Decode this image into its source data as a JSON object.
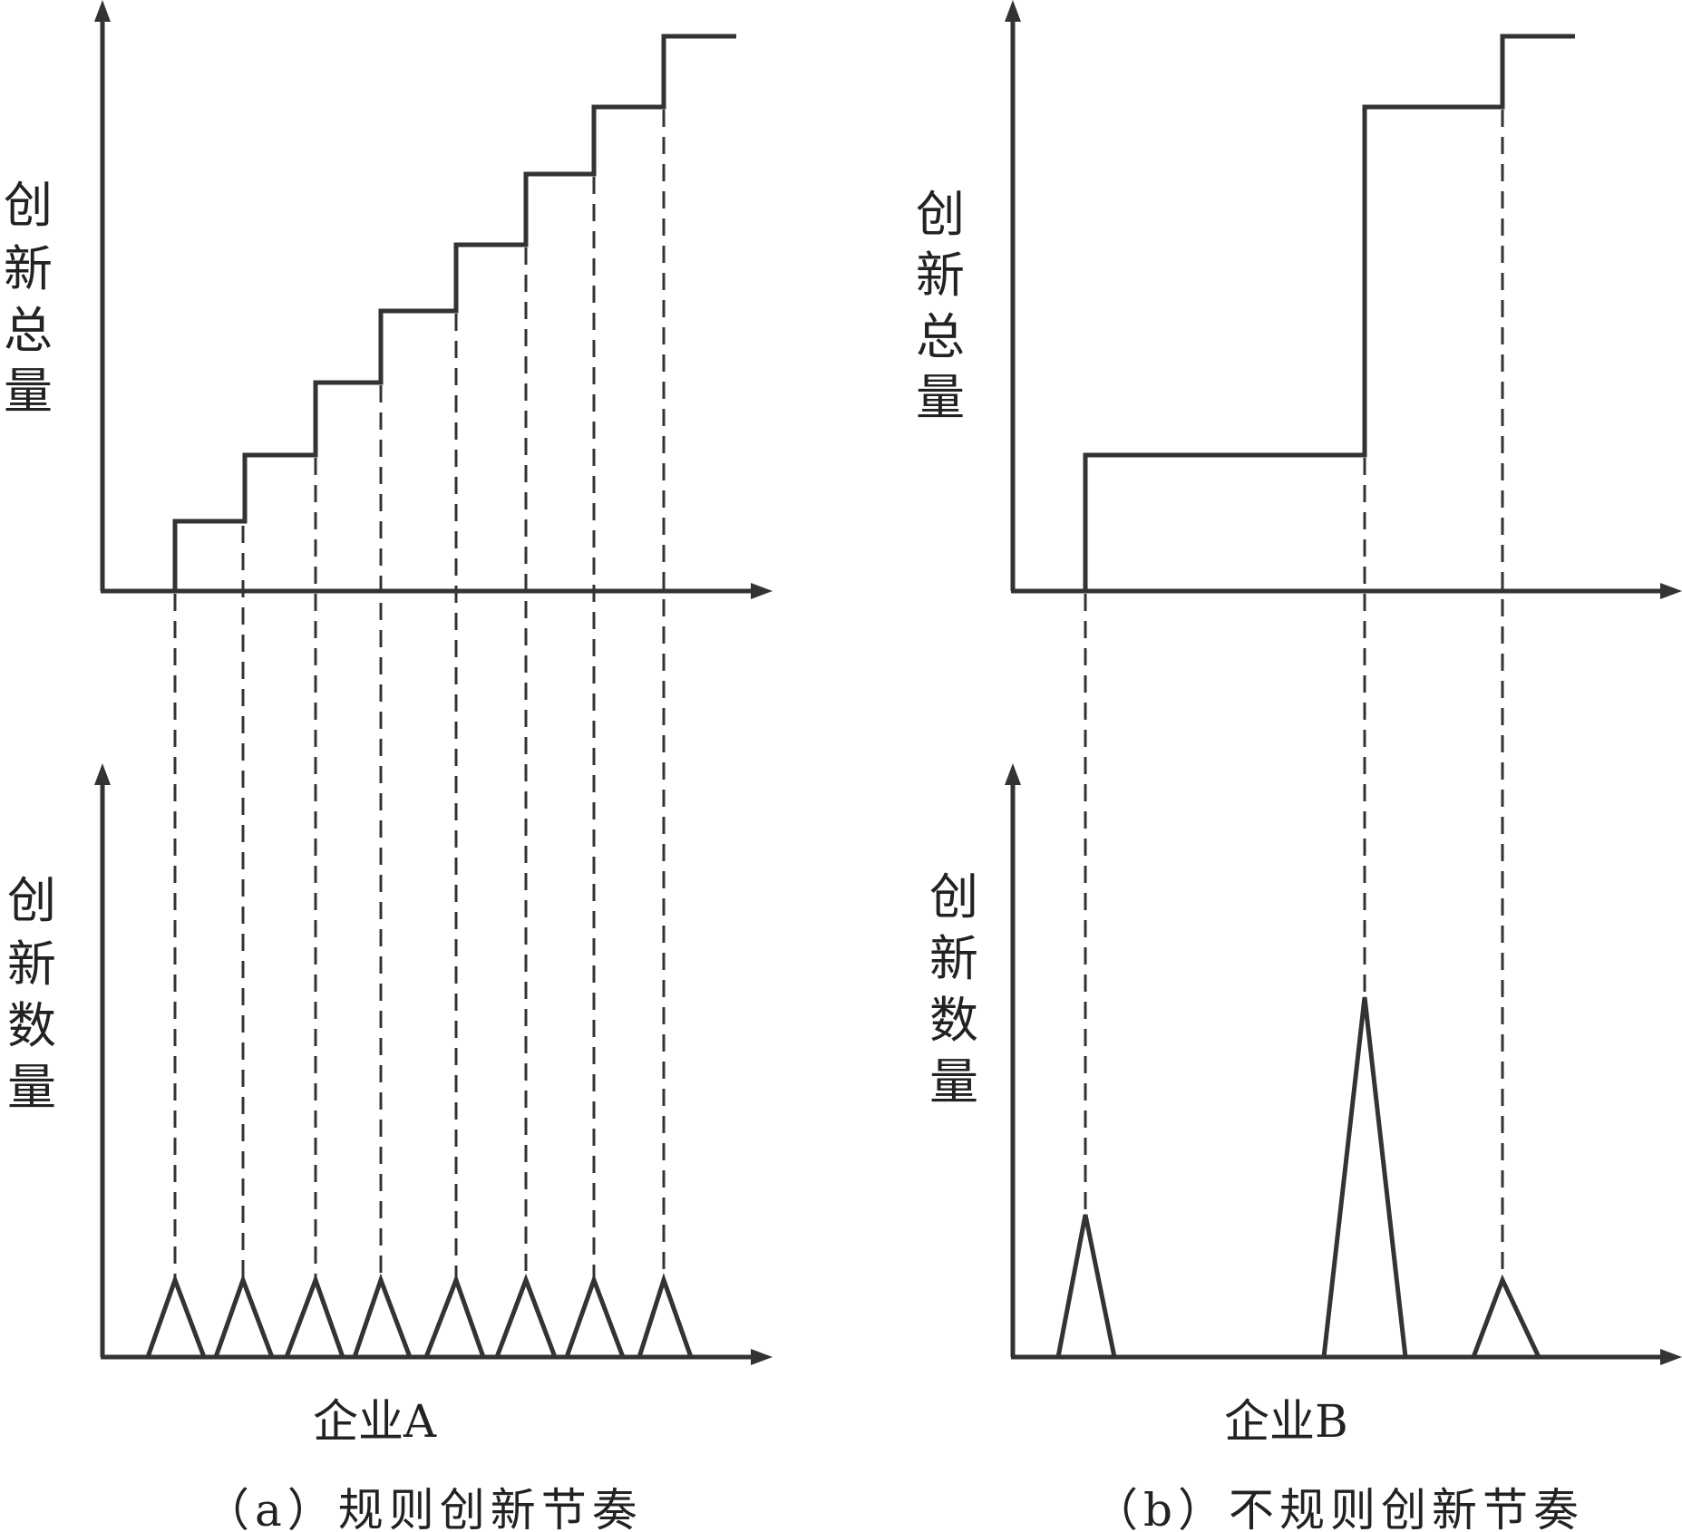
{
  "panel_a": {
    "top_ylabel": [
      "创",
      "新",
      "总",
      "量"
    ],
    "bottom_ylabel": [
      "创",
      "新",
      "数",
      "量"
    ],
    "company": "企业A",
    "caption": "（a）规则创新节奏"
  },
  "panel_b": {
    "top_ylabel": [
      "创",
      "新",
      "总",
      "量"
    ],
    "bottom_ylabel": [
      "创",
      "新",
      "数",
      "量"
    ],
    "company": "企业B",
    "caption": "（b）不规则创新节奏"
  },
  "colors": {
    "line": "#333333",
    "text": "#222222",
    "background": "#ffffff"
  }
}
